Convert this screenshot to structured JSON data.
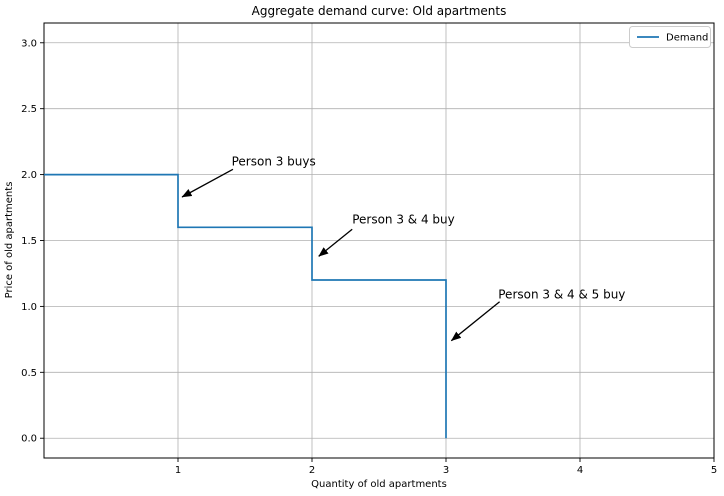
{
  "figure": {
    "title": "Aggregate demand curve: Old apartments",
    "xlabel": "Quantity of old apartments",
    "ylabel": "Price of old apartments"
  },
  "legend": {
    "position": "upper right",
    "items": [
      {
        "label": "Demand",
        "color": "#1f77b4"
      }
    ]
  },
  "colors": {
    "line": "#1f77b4",
    "grid": "#b0b0b0",
    "spine": "#000000",
    "text": "#000000",
    "background": "#ffffff",
    "legend_border": "#cccccc",
    "arrow": "#000000"
  },
  "chart_data": {
    "type": "line",
    "subtype": "step",
    "title": "Aggregate demand curve: Old apartments",
    "xlabel": "Quantity of old apartments",
    "ylabel": "Price of old apartments",
    "xlim": [
      0,
      5
    ],
    "ylim": [
      -0.15,
      3.15
    ],
    "grid": true,
    "legend_position": "upper right",
    "xticks": [
      {
        "value": 1,
        "label": "1"
      },
      {
        "value": 2,
        "label": "2"
      },
      {
        "value": 3,
        "label": "3"
      },
      {
        "value": 4,
        "label": "4"
      },
      {
        "value": 5,
        "label": "5"
      }
    ],
    "yticks": [
      {
        "value": 0.0,
        "label": "0.0"
      },
      {
        "value": 0.5,
        "label": "0.5"
      },
      {
        "value": 1.0,
        "label": "1.0"
      },
      {
        "value": 1.5,
        "label": "1.5"
      },
      {
        "value": 2.0,
        "label": "2.0"
      },
      {
        "value": 2.5,
        "label": "2.5"
      },
      {
        "value": 3.0,
        "label": "3.0"
      }
    ],
    "series": [
      {
        "name": "Demand",
        "color": "#1f77b4",
        "points": [
          [
            0,
            2.0
          ],
          [
            1,
            2.0
          ],
          [
            1,
            1.6
          ],
          [
            2,
            1.6
          ],
          [
            2,
            1.2
          ],
          [
            3,
            1.2
          ],
          [
            3,
            0.0
          ]
        ]
      }
    ],
    "annotations": [
      {
        "text": "Person 3 buys",
        "text_xy": [
          1.4,
          2.07
        ],
        "arrow_start": [
          1.41,
          2.04
        ],
        "arrow_end": [
          1.03,
          1.83
        ]
      },
      {
        "text": "Person 3 & 4 buy",
        "text_xy": [
          2.3,
          1.63
        ],
        "arrow_start": [
          2.3,
          1.585
        ],
        "arrow_end": [
          2.05,
          1.38
        ]
      },
      {
        "text": "Person 3 & 4 & 5 buy",
        "text_xy": [
          3.39,
          1.06
        ],
        "arrow_start": [
          3.4,
          1.035
        ],
        "arrow_end": [
          3.04,
          0.74
        ]
      }
    ]
  }
}
